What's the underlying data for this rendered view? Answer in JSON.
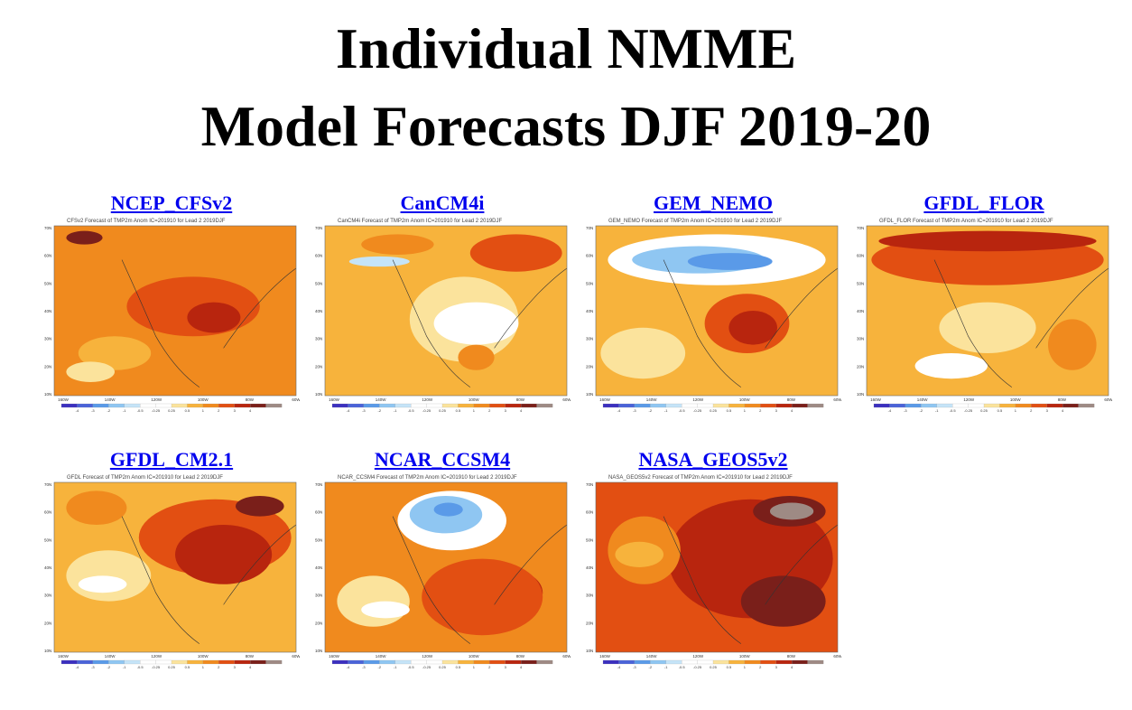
{
  "title": {
    "line1": "Individual NMME",
    "line2": "Model Forecasts DJF 2019-20"
  },
  "panels": [
    {
      "label": "NCEP_CFSv2",
      "caption": "CFSv2 Forecast of TMP2m Anom IC=201910 for Lead 2 2019DJF",
      "scheme": "hot"
    },
    {
      "label": "CanCM4i",
      "caption": "CanCM4i Forecast of TMP2m Anom IC=201910 for Lead 2 2019DJF",
      "scheme": "mild"
    },
    {
      "label": "GEM_NEMO",
      "caption": "GEM_NEMO Forecast of TMP2m Anom IC=201910 for Lead 2 2019DJF",
      "scheme": "cold-north"
    },
    {
      "label": "GFDL_FLOR",
      "caption": "GFDL_FLOR Forecast of TMP2m Anom IC=201910 for Lead 2 2019DJF",
      "scheme": "warm"
    },
    {
      "label": "GFDL_CM2.1",
      "caption": "GFDL Forecast of TMP2m Anom IC=201910 for Lead 2 2019DJF",
      "scheme": "warm-east"
    },
    {
      "label": "NCAR_CCSM4",
      "caption": "NCAR_CCSM4 Forecast of TMP2m Anom IC=201910 for Lead 2 2019DJF",
      "scheme": "cold-canada"
    },
    {
      "label": "NASA_GEOS5v2",
      "caption": "NASA_GEOS5v2 Forecast of TMP2m Anom IC=201910 for Lead 2 2019DJF",
      "scheme": "very-hot"
    }
  ],
  "map_axes": {
    "lat_labels": [
      "70N",
      "60N",
      "50N",
      "40N",
      "30N",
      "20N",
      "10N"
    ],
    "lon_labels": [
      "160W",
      "140W",
      "120W",
      "100W",
      "80W",
      "60W"
    ]
  },
  "colorbar": {
    "ticks": [
      "-4",
      "-3",
      "-2",
      "-1",
      "-0.5",
      "-0.25",
      "0.25",
      "0.5",
      "1",
      "2",
      "3",
      "4"
    ],
    "colors": [
      "#3b2fbf",
      "#4a63d8",
      "#5a9ae8",
      "#8fc6f2",
      "#c5e4f8",
      "#ffffff",
      "#ffffff",
      "#fbe39c",
      "#f7b33c",
      "#f08a1e",
      "#e24f12",
      "#b8250e",
      "#7a1f1a",
      "#9e8a84"
    ]
  }
}
